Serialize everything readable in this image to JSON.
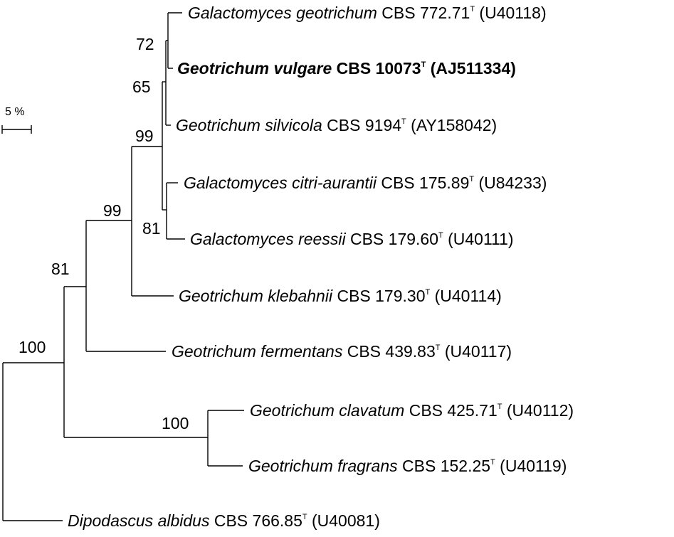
{
  "scale_bar": {
    "label": "5 %"
  },
  "taxa": [
    {
      "id": "t1",
      "genus_species": "Galactomyces geotrichum",
      "strain": " CBS 772.71",
      "type_mark": "T",
      "accession": " (U40118)",
      "bold": false
    },
    {
      "id": "t2",
      "genus_species": "Geotrichum vulgare",
      "strain": " CBS 10073",
      "type_mark": "T",
      "accession": " (AJ511334)",
      "bold": true
    },
    {
      "id": "t3",
      "genus_species": "Geotrichum silvicola",
      "strain": " CBS 9194",
      "type_mark": "T",
      "accession": " (AY158042)",
      "bold": false
    },
    {
      "id": "t4",
      "genus_species": "Galactomyces citri-aurantii",
      "strain": " CBS 175.89",
      "type_mark": "T",
      "accession": " (U84233)",
      "bold": false
    },
    {
      "id": "t5",
      "genus_species": "Galactomyces reessii",
      "strain": " CBS 179.60",
      "type_mark": "T",
      "accession": " (U40111)",
      "bold": false
    },
    {
      "id": "t6",
      "genus_species": "Geotrichum klebahnii",
      "strain": " CBS 179.30",
      "type_mark": "T",
      "accession": " (U40114)",
      "bold": false
    },
    {
      "id": "t7",
      "genus_species": "Geotrichum fermentans",
      "strain": " CBS 439.83",
      "type_mark": "T",
      "accession": " (U40117)",
      "bold": false
    },
    {
      "id": "t8",
      "genus_species": "Geotrichum clavatum",
      "strain": " CBS 425.71",
      "type_mark": "T",
      "accession": " (U40112)",
      "bold": false
    },
    {
      "id": "t9",
      "genus_species": "Geotrichum fragrans",
      "strain": " CBS 152.25",
      "type_mark": "T",
      "accession": " (U40119)",
      "bold": false
    },
    {
      "id": "t10",
      "genus_species": "Dipodascus albidus",
      "strain": " CBS 766.85",
      "type_mark": "T",
      "accession": " (U40081)",
      "bold": false
    }
  ],
  "bootstrap": {
    "n_geo_vulgare": "72",
    "n_silvicola_clade": "65",
    "n_geotrichum_core": "99",
    "n_citri_reessii": "81",
    "n_klebahnii_clade": "99",
    "n_fermentans_clade": "81",
    "n_ingroup": "100",
    "n_clavatum_fragrans": "100"
  }
}
